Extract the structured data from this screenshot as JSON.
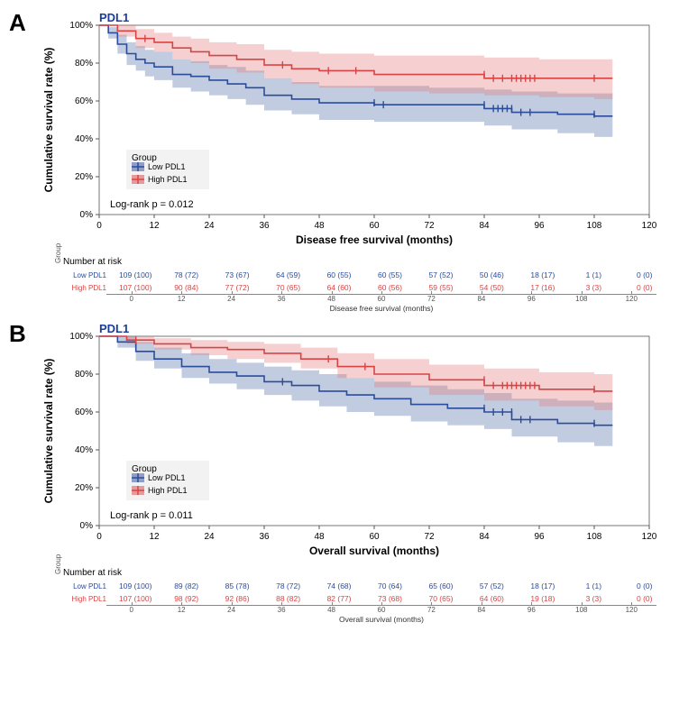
{
  "panels": [
    {
      "letter": "A",
      "title": "PDL1",
      "title_color": "#1a3e9c",
      "title_fontsize": 13,
      "xlabel": "Disease free survival (months)",
      "ylabel": "Cumulative survival rate (%)",
      "label_fontsize": 12,
      "logrank": "Log-rank  p = 0.012",
      "xlim": [
        0,
        120
      ],
      "xtick_step": 12,
      "ylim": [
        0,
        100
      ],
      "ytick_step": 20,
      "ytick_suffix": "%",
      "background_color": "#ffffff",
      "border_color": "#555555",
      "legend": {
        "title": "Group",
        "items": [
          {
            "label": "Low PDL1",
            "color": "#2b4c9b"
          },
          {
            "label": "High PDL1",
            "color": "#d84444"
          }
        ]
      },
      "series": [
        {
          "name": "Low PDL1",
          "color": "#2b4c9b",
          "fill": "rgba(80,110,170,0.35)",
          "line_width": 1.6,
          "x": [
            0,
            2,
            4,
            6,
            8,
            10,
            12,
            16,
            20,
            24,
            28,
            32,
            36,
            42,
            48,
            60,
            72,
            84,
            90,
            100,
            108,
            112
          ],
          "y": [
            100,
            96,
            90,
            85,
            82,
            80,
            78,
            74,
            73,
            71,
            69,
            67,
            63,
            61,
            59,
            58,
            58,
            56,
            54,
            53,
            52,
            52
          ],
          "lo": [
            100,
            93,
            85,
            79,
            76,
            73,
            71,
            67,
            65,
            63,
            61,
            58,
            55,
            53,
            50,
            49,
            49,
            47,
            45,
            43,
            41,
            41
          ],
          "hi": [
            100,
            99,
            95,
            91,
            89,
            87,
            86,
            82,
            81,
            79,
            78,
            76,
            72,
            70,
            68,
            68,
            67,
            66,
            65,
            64,
            64,
            64
          ],
          "censor_x": [
            60,
            62,
            84,
            86,
            87,
            88,
            89,
            90,
            92,
            94,
            108
          ]
        },
        {
          "name": "High PDL1",
          "color": "#d84444",
          "fill": "rgba(230,120,120,0.35)",
          "line_width": 1.6,
          "x": [
            0,
            4,
            8,
            12,
            16,
            20,
            24,
            30,
            36,
            42,
            48,
            60,
            72,
            84,
            96,
            108,
            112
          ],
          "y": [
            100,
            97,
            93,
            91,
            88,
            86,
            84,
            82,
            79,
            77,
            76,
            74,
            74,
            72,
            72,
            72,
            72
          ],
          "lo": [
            100,
            94,
            88,
            86,
            82,
            80,
            77,
            75,
            72,
            69,
            67,
            65,
            64,
            63,
            62,
            61,
            61
          ],
          "hi": [
            100,
            100,
            98,
            96,
            94,
            93,
            91,
            90,
            87,
            86,
            85,
            84,
            84,
            83,
            82,
            82,
            82
          ],
          "censor_x": [
            10,
            40,
            50,
            56,
            84,
            86,
            88,
            90,
            91,
            92,
            93,
            94,
            95,
            108
          ]
        }
      ],
      "risk": {
        "header": "Number at risk",
        "xlabel": "Disease free survival (months)",
        "xticks": [
          0,
          12,
          24,
          36,
          48,
          60,
          72,
          84,
          96,
          108,
          120
        ],
        "rows": [
          {
            "label": "Low PDL1",
            "color": "#2b4c9b",
            "cells": [
              "109 (100)",
              "78 (72)",
              "73 (67)",
              "64 (59)",
              "60 (55)",
              "60 (55)",
              "57 (52)",
              "50 (46)",
              "18 (17)",
              "1 (1)",
              "0 (0)"
            ]
          },
          {
            "label": "High PDL1",
            "color": "#d84444",
            "cells": [
              "107 (100)",
              "90 (84)",
              "77 (72)",
              "70 (65)",
              "64 (60)",
              "60 (56)",
              "59 (55)",
              "54 (50)",
              "17 (16)",
              "3 (3)",
              "0 (0)"
            ]
          }
        ]
      }
    },
    {
      "letter": "B",
      "title": "PDL1",
      "title_color": "#1a3e9c",
      "title_fontsize": 13,
      "xlabel": "Overall survival (months)",
      "ylabel": "Cumulative survival rate (%)",
      "label_fontsize": 12,
      "logrank": "Log-rank  p = 0.011",
      "xlim": [
        0,
        120
      ],
      "xtick_step": 12,
      "ylim": [
        0,
        100
      ],
      "ytick_step": 20,
      "ytick_suffix": "%",
      "background_color": "#ffffff",
      "border_color": "#555555",
      "legend": {
        "title": "Group",
        "items": [
          {
            "label": "Low PDL1",
            "color": "#2b4c9b"
          },
          {
            "label": "High PDL1",
            "color": "#d84444"
          }
        ]
      },
      "series": [
        {
          "name": "Low PDL1",
          "color": "#2b4c9b",
          "fill": "rgba(80,110,170,0.35)",
          "line_width": 1.6,
          "x": [
            0,
            4,
            8,
            12,
            18,
            24,
            30,
            36,
            42,
            48,
            54,
            60,
            68,
            76,
            84,
            90,
            100,
            108,
            112
          ],
          "y": [
            100,
            97,
            92,
            88,
            84,
            81,
            79,
            76,
            74,
            71,
            69,
            67,
            64,
            62,
            60,
            56,
            54,
            53,
            53
          ],
          "lo": [
            100,
            94,
            87,
            83,
            78,
            75,
            72,
            69,
            66,
            63,
            60,
            58,
            55,
            53,
            51,
            47,
            44,
            42,
            42
          ],
          "hi": [
            100,
            100,
            97,
            94,
            91,
            88,
            86,
            84,
            82,
            80,
            78,
            76,
            74,
            72,
            70,
            67,
            66,
            65,
            65
          ],
          "censor_x": [
            8,
            40,
            84,
            86,
            88,
            90,
            92,
            94,
            108
          ]
        },
        {
          "name": "High PDL1",
          "color": "#d84444",
          "fill": "rgba(230,120,120,0.35)",
          "line_width": 1.6,
          "x": [
            0,
            6,
            12,
            20,
            28,
            36,
            44,
            52,
            60,
            72,
            84,
            96,
            108,
            112
          ],
          "y": [
            100,
            98,
            96,
            94,
            93,
            91,
            88,
            84,
            80,
            77,
            74,
            72,
            71,
            71
          ],
          "lo": [
            100,
            96,
            93,
            90,
            88,
            86,
            83,
            78,
            73,
            69,
            66,
            63,
            61,
            61
          ],
          "hi": [
            100,
            100,
            99,
            98,
            97,
            96,
            94,
            91,
            88,
            85,
            83,
            81,
            80,
            80
          ],
          "censor_x": [
            8,
            50,
            58,
            84,
            86,
            88,
            89,
            90,
            91,
            92,
            93,
            94,
            95,
            108
          ]
        }
      ],
      "risk": {
        "header": "Number at risk",
        "xlabel": "Overall survival (months)",
        "xticks": [
          0,
          12,
          24,
          36,
          48,
          60,
          72,
          84,
          96,
          108,
          120
        ],
        "rows": [
          {
            "label": "Low PDL1",
            "color": "#2b4c9b",
            "cells": [
              "109 (100)",
              "89 (82)",
              "85 (78)",
              "78 (72)",
              "74 (68)",
              "70 (64)",
              "65 (60)",
              "57 (52)",
              "18 (17)",
              "1 (1)",
              "0 (0)"
            ]
          },
          {
            "label": "High PDL1",
            "color": "#d84444",
            "cells": [
              "107 (100)",
              "98 (92)",
              "92 (86)",
              "88 (82)",
              "82 (77)",
              "73 (68)",
              "70 (65)",
              "64 (60)",
              "19 (18)",
              "3 (3)",
              "0 (0)"
            ]
          }
        ]
      }
    }
  ]
}
